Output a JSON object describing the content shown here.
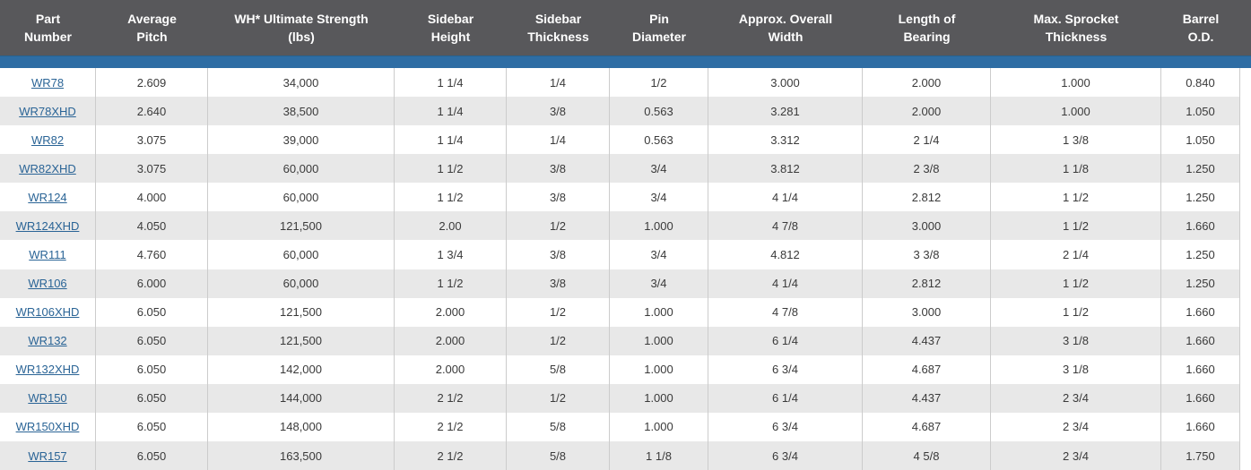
{
  "colors": {
    "header_bg": "#58585b",
    "header_text": "#ffffff",
    "accent_bar": "#2e6da4",
    "accent_bar_edge": "#27618f",
    "link": "#2a6496",
    "row_alt": "#e8e8e8",
    "row_white": "#ffffff",
    "cell_text": "#3a3a3a",
    "grid_line": "#cccccc"
  },
  "table": {
    "columns": [
      {
        "id": "part_number",
        "label": "Part\nNumber"
      },
      {
        "id": "average_pitch",
        "label": "Average\nPitch"
      },
      {
        "id": "ultimate_strength",
        "label": "WH* Ultimate Strength\n(lbs)"
      },
      {
        "id": "sidebar_height",
        "label": "Sidebar\nHeight"
      },
      {
        "id": "sidebar_thickness",
        "label": "Sidebar\nThickness"
      },
      {
        "id": "pin_diameter",
        "label": "Pin\nDiameter"
      },
      {
        "id": "overall_width",
        "label": "Approx. Overall\nWidth"
      },
      {
        "id": "length_of_bearing",
        "label": "Length of\nBearing"
      },
      {
        "id": "max_sprocket_thickness",
        "label": "Max. Sprocket\nThickness"
      },
      {
        "id": "barrel_od",
        "label": "Barrel\nO.D."
      }
    ],
    "rows": [
      {
        "part_number": "WR78",
        "average_pitch": "2.609",
        "ultimate_strength": "34,000",
        "sidebar_height": "1 1/4",
        "sidebar_thickness": "1/4",
        "pin_diameter": "1/2",
        "overall_width": "3.000",
        "length_of_bearing": "2.000",
        "max_sprocket_thickness": "1.000",
        "barrel_od": "0.840"
      },
      {
        "part_number": "WR78XHD",
        "average_pitch": "2.640",
        "ultimate_strength": "38,500",
        "sidebar_height": "1 1/4",
        "sidebar_thickness": "3/8",
        "pin_diameter": "0.563",
        "overall_width": "3.281",
        "length_of_bearing": "2.000",
        "max_sprocket_thickness": "1.000",
        "barrel_od": "1.050"
      },
      {
        "part_number": "WR82",
        "average_pitch": "3.075",
        "ultimate_strength": "39,000",
        "sidebar_height": "1 1/4",
        "sidebar_thickness": "1/4",
        "pin_diameter": "0.563",
        "overall_width": "3.312",
        "length_of_bearing": "2 1/4",
        "max_sprocket_thickness": "1 3/8",
        "barrel_od": "1.050"
      },
      {
        "part_number": "WR82XHD",
        "average_pitch": "3.075",
        "ultimate_strength": "60,000",
        "sidebar_height": "1 1/2",
        "sidebar_thickness": "3/8",
        "pin_diameter": "3/4",
        "overall_width": "3.812",
        "length_of_bearing": "2 3/8",
        "max_sprocket_thickness": "1 1/8",
        "barrel_od": "1.250"
      },
      {
        "part_number": "WR124",
        "average_pitch": "4.000",
        "ultimate_strength": "60,000",
        "sidebar_height": "1 1/2",
        "sidebar_thickness": "3/8",
        "pin_diameter": "3/4",
        "overall_width": "4 1/4",
        "length_of_bearing": "2.812",
        "max_sprocket_thickness": "1 1/2",
        "barrel_od": "1.250"
      },
      {
        "part_number": "WR124XHD",
        "average_pitch": "4.050",
        "ultimate_strength": "121,500",
        "sidebar_height": "2.00",
        "sidebar_thickness": "1/2",
        "pin_diameter": "1.000",
        "overall_width": "4 7/8",
        "length_of_bearing": "3.000",
        "max_sprocket_thickness": "1 1/2",
        "barrel_od": "1.660"
      },
      {
        "part_number": "WR111",
        "average_pitch": "4.760",
        "ultimate_strength": "60,000",
        "sidebar_height": "1 3/4",
        "sidebar_thickness": "3/8",
        "pin_diameter": "3/4",
        "overall_width": "4.812",
        "length_of_bearing": "3 3/8",
        "max_sprocket_thickness": "2 1/4",
        "barrel_od": "1.250"
      },
      {
        "part_number": "WR106",
        "average_pitch": "6.000",
        "ultimate_strength": "60,000",
        "sidebar_height": "1 1/2",
        "sidebar_thickness": "3/8",
        "pin_diameter": "3/4",
        "overall_width": "4 1/4",
        "length_of_bearing": "2.812",
        "max_sprocket_thickness": "1 1/2",
        "barrel_od": "1.250"
      },
      {
        "part_number": "WR106XHD",
        "average_pitch": "6.050",
        "ultimate_strength": "121,500",
        "sidebar_height": "2.000",
        "sidebar_thickness": "1/2",
        "pin_diameter": "1.000",
        "overall_width": "4 7/8",
        "length_of_bearing": "3.000",
        "max_sprocket_thickness": "1 1/2",
        "barrel_od": "1.660"
      },
      {
        "part_number": "WR132",
        "average_pitch": "6.050",
        "ultimate_strength": "121,500",
        "sidebar_height": "2.000",
        "sidebar_thickness": "1/2",
        "pin_diameter": "1.000",
        "overall_width": "6 1/4",
        "length_of_bearing": "4.437",
        "max_sprocket_thickness": "3 1/8",
        "barrel_od": "1.660"
      },
      {
        "part_number": "WR132XHD",
        "average_pitch": "6.050",
        "ultimate_strength": "142,000",
        "sidebar_height": "2.000",
        "sidebar_thickness": "5/8",
        "pin_diameter": "1.000",
        "overall_width": "6 3/4",
        "length_of_bearing": "4.687",
        "max_sprocket_thickness": "3 1/8",
        "barrel_od": "1.660"
      },
      {
        "part_number": "WR150",
        "average_pitch": "6.050",
        "ultimate_strength": "144,000",
        "sidebar_height": "2 1/2",
        "sidebar_thickness": "1/2",
        "pin_diameter": "1.000",
        "overall_width": "6 1/4",
        "length_of_bearing": "4.437",
        "max_sprocket_thickness": "2 3/4",
        "barrel_od": "1.660"
      },
      {
        "part_number": "WR150XHD",
        "average_pitch": "6.050",
        "ultimate_strength": "148,000",
        "sidebar_height": "2 1/2",
        "sidebar_thickness": "5/8",
        "pin_diameter": "1.000",
        "overall_width": "6 3/4",
        "length_of_bearing": "4.687",
        "max_sprocket_thickness": "2 3/4",
        "barrel_od": "1.660"
      },
      {
        "part_number": "WR157",
        "average_pitch": "6.050",
        "ultimate_strength": "163,500",
        "sidebar_height": "2 1/2",
        "sidebar_thickness": "5/8",
        "pin_diameter": "1 1/8",
        "overall_width": "6 3/4",
        "length_of_bearing": "4 5/8",
        "max_sprocket_thickness": "2 3/4",
        "barrel_od": "1.750"
      }
    ]
  }
}
